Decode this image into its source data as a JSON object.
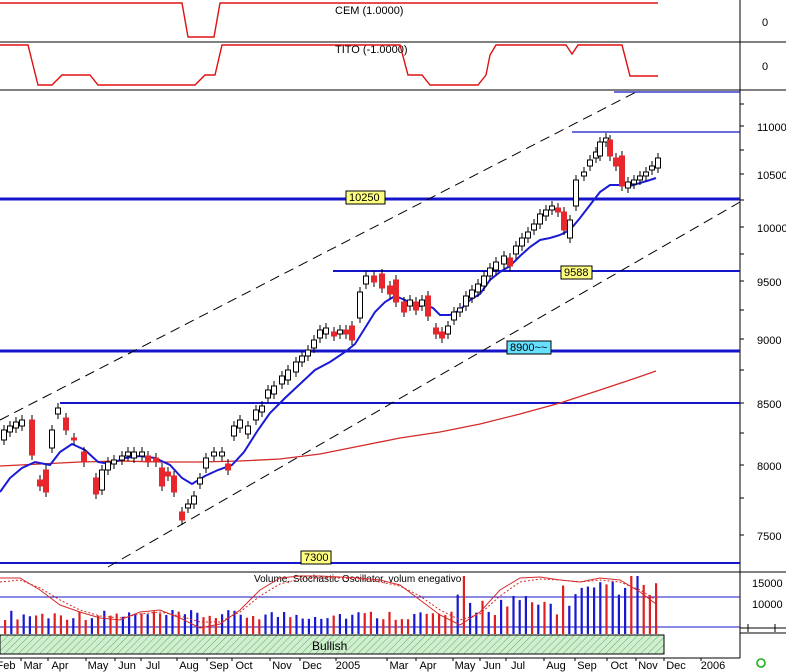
{
  "indicator_panels": [
    {
      "label": "CEM (1.0000)",
      "axis_label": "0"
    },
    {
      "label": "TITO (-1.0000)",
      "axis_label": "0"
    }
  ],
  "price_panel": {
    "y_ticks": [
      "11000",
      "10500",
      "10000",
      "9500",
      "9000",
      "8500",
      "8000",
      "7500"
    ],
    "levels": [
      {
        "label": "10250",
        "value": 10250
      },
      {
        "label": "9588",
        "value": 9588
      },
      {
        "label": "8900~~",
        "value": 8900
      },
      {
        "label": "7300",
        "value": 7300
      }
    ]
  },
  "volume_panel": {
    "title": "Volume, Stochastic Oscillator, volum enegativo",
    "y_ticks": [
      "15000",
      "10000"
    ],
    "status": "Bullish"
  },
  "x_axis": {
    "labels": [
      "Feb",
      "Mar",
      "Apr",
      "May",
      "Jun",
      "Jul",
      "Aug",
      "Sep",
      "Oct",
      "Nov",
      "Dec",
      "2005",
      "Mar",
      "Apr",
      "May",
      "Jun",
      "Jul",
      "Aug",
      "Sep",
      "Oct",
      "Nov",
      "Dec",
      "2006"
    ]
  },
  "colors": {
    "up_candle": "#ffffff",
    "down_candle": "#e8262b",
    "ma_short": "#1b1bd6",
    "ma_long": "#d42a2a",
    "level_line": "#1414c8",
    "label_yellow": "#ffff80",
    "label_cyan": "#66e0ff"
  },
  "chart_data": {
    "type": "candlestick",
    "x": [
      "Feb",
      "Mar",
      "Apr",
      "May",
      "Jun",
      "Jul",
      "Aug",
      "Sep",
      "Oct",
      "Nov",
      "Dec",
      "2005",
      "Mar",
      "Apr",
      "May",
      "Jun",
      "Jul",
      "Aug",
      "Sep",
      "Oct",
      "Nov"
    ],
    "close": [
      8300,
      7900,
      8350,
      7800,
      8150,
      8050,
      7850,
      8150,
      8350,
      8650,
      9000,
      9100,
      9450,
      9250,
      9050,
      9400,
      9650,
      10050,
      10300,
      10800,
      10500
    ],
    "sma_short": [
      8050,
      7980,
      8150,
      8020,
      8080,
      8050,
      7870,
      8020,
      8300,
      8600,
      8850,
      9050,
      9280,
      9250,
      9150,
      9350,
      9600,
      9950,
      10250,
      10550,
      10450
    ],
    "sma_long": [
      7950,
      7970,
      8000,
      8010,
      8020,
      8030,
      8010,
      8020,
      8060,
      8120,
      8190,
      8260,
      8330,
      8400,
      8450,
      8520,
      8590,
      8670,
      8760,
      8860,
      8950
    ],
    "ylim": [
      7300,
      11300
    ],
    "horizontal_levels": [
      10250,
      9588,
      8900,
      7300
    ],
    "volume": [
      6000,
      7000,
      8000,
      6500,
      7000,
      6000,
      6500,
      7500,
      7000,
      7500,
      8000,
      8500,
      9000,
      8500,
      9500,
      10000,
      11000,
      12000,
      14000,
      15500,
      12000
    ]
  }
}
